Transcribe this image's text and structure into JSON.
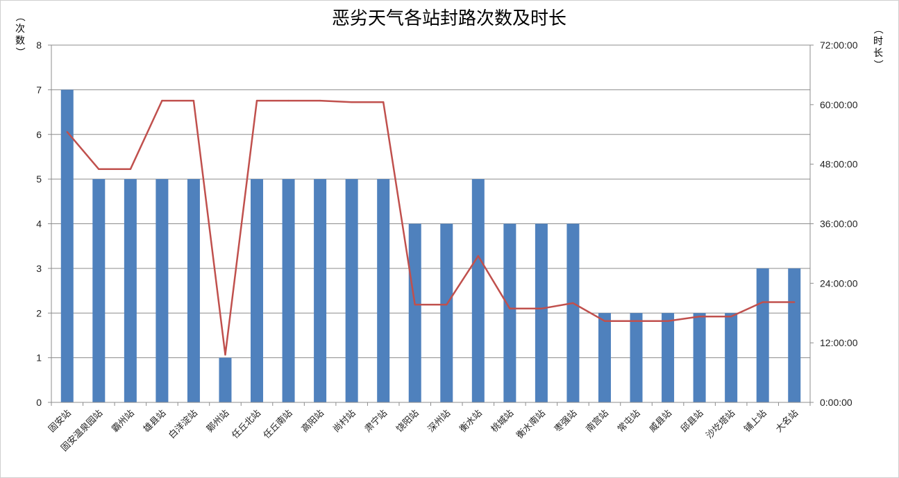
{
  "chart_data": {
    "type": "bar",
    "title": "恶劣天气各站封路次数及时长",
    "ylabel": "（次数）",
    "y2label": "（时长）",
    "ylim": [
      0,
      8
    ],
    "y2lim_hours": [
      0,
      72
    ],
    "y_ticks": [
      "0",
      "1",
      "2",
      "3",
      "4",
      "5",
      "6",
      "7",
      "8"
    ],
    "y2_ticks": [
      "0:00:00",
      "12:00:00",
      "24:00:00",
      "36:00:00",
      "48:00:00",
      "60:00:00",
      "72:00:00"
    ],
    "grid": true,
    "categories": [
      "固安站",
      "固安温泉园站",
      "霸州站",
      "雄县站",
      "白洋淀站",
      "鄚州站",
      "任丘北站",
      "任丘南站",
      "高阳站",
      "尚村站",
      "肃宁站",
      "饶阳站",
      "深州站",
      "衡水站",
      "桃城站",
      "衡水南站",
      "枣强站",
      "南宫站",
      "常屯站",
      "威县站",
      "邱县站",
      "沙圪塔站",
      "铺上站",
      "大名站"
    ],
    "series": [
      {
        "kind": "bar",
        "axis": "left",
        "color": "#4f81bd",
        "values": [
          7,
          5,
          5,
          5,
          5,
          1,
          5,
          5,
          5,
          5,
          5,
          4,
          4,
          5,
          4,
          4,
          4,
          2,
          2,
          2,
          2,
          2,
          3,
          3
        ]
      },
      {
        "kind": "line",
        "axis": "right",
        "unit": "hours",
        "color": "#c0504d",
        "values": [
          54.5,
          47,
          47,
          60.8,
          60.8,
          9.6,
          60.8,
          60.8,
          60.8,
          60.5,
          60.5,
          19.7,
          19.7,
          29.5,
          18.9,
          18.9,
          20,
          16.4,
          16.4,
          16.4,
          17.3,
          17.3,
          20.2,
          20.2
        ]
      }
    ]
  }
}
